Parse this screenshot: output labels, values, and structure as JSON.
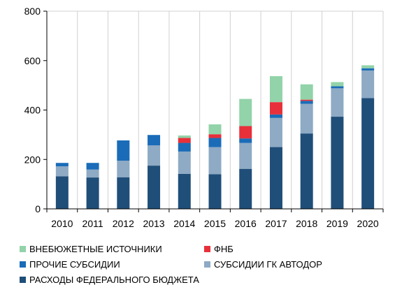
{
  "chart_data": {
    "type": "bar",
    "stacked": true,
    "categories": [
      "2010",
      "2011",
      "2012",
      "2013",
      "2014",
      "2015",
      "2016",
      "2017",
      "2018",
      "2019",
      "2020"
    ],
    "y_ticks": [
      "0",
      "200",
      "400",
      "600",
      "800"
    ],
    "ylim": [
      0,
      800
    ],
    "grid": "vertical",
    "legend_position": "bottom",
    "series": [
      {
        "name": "РАСХОДЫ ФЕДЕРАЛЬНОГО БЮДЖЕТА",
        "color": "#1f4e79",
        "values": [
          132,
          127,
          128,
          175,
          142,
          140,
          162,
          250,
          305,
          373,
          448
        ]
      },
      {
        "name": "СУБСИДИИ ГК АВТОДОР",
        "color": "#8eaac4",
        "values": [
          40,
          32,
          67,
          82,
          90,
          110,
          105,
          118,
          120,
          115,
          112
        ]
      },
      {
        "name": "ПРОЧИЕ СУБСИДИИ",
        "color": "#1a6cb8",
        "values": [
          14,
          27,
          82,
          42,
          35,
          37,
          18,
          14,
          12,
          8,
          9
        ]
      },
      {
        "name": "ФНБ",
        "color": "#e8303a",
        "values": [
          0,
          0,
          0,
          0,
          20,
          15,
          50,
          50,
          5,
          0,
          0
        ]
      },
      {
        "name": "ВНЕБЮЖЕТНЫЕ ИСТОЧНИКИ",
        "color": "#92d3a9",
        "values": [
          0,
          0,
          0,
          0,
          10,
          40,
          110,
          105,
          62,
          17,
          12
        ]
      }
    ]
  },
  "legend": {
    "item_1": "ВНЕБЮЖЕТНЫЕ ИСТОЧНИКИ",
    "item_2": "ФНБ",
    "item_3": "ПРОЧИЕ СУБСИДИИ",
    "item_4": "СУБСИДИИ ГК АВТОДОР",
    "item_5": "РАСХОДЫ ФЕДЕРАЛЬНОГО БЮДЖЕТА"
  },
  "colors": {
    "item_1": "#92d3a9",
    "item_2": "#e8303a",
    "item_3": "#1a6cb8",
    "item_4": "#8eaac4",
    "item_5": "#1f4e79"
  }
}
